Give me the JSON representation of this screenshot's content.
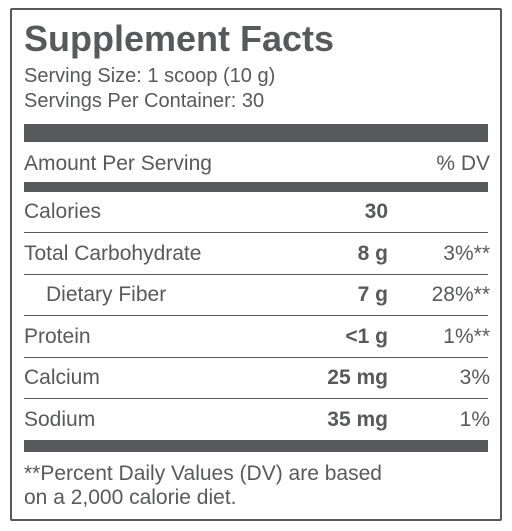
{
  "title": "Supplement Facts",
  "serving_size": "Serving Size: 1 scoop (10 g)",
  "servings_per_container": "Servings Per Container: 30",
  "header": {
    "amount": "Amount Per Serving",
    "dv": "% DV"
  },
  "rows": [
    {
      "name": "Calories",
      "amount": "30"
    },
    {
      "name": "Total Carbohydrate",
      "amount": "8 g",
      "dv": "3%**"
    },
    {
      "name": "Dietary Fiber",
      "amount": "7 g",
      "dv": "28%**"
    },
    {
      "name": "Protein",
      "amount": "<1 g",
      "dv": "1%**"
    },
    {
      "name": "Calcium",
      "amount": "25 mg",
      "dv": "3%"
    },
    {
      "name": "Sodium",
      "amount": "35 mg",
      "dv": "1%"
    }
  ],
  "footnote": [
    "**Percent Daily Values (DV) are based",
    "on a 2,000 calorie diet."
  ]
}
